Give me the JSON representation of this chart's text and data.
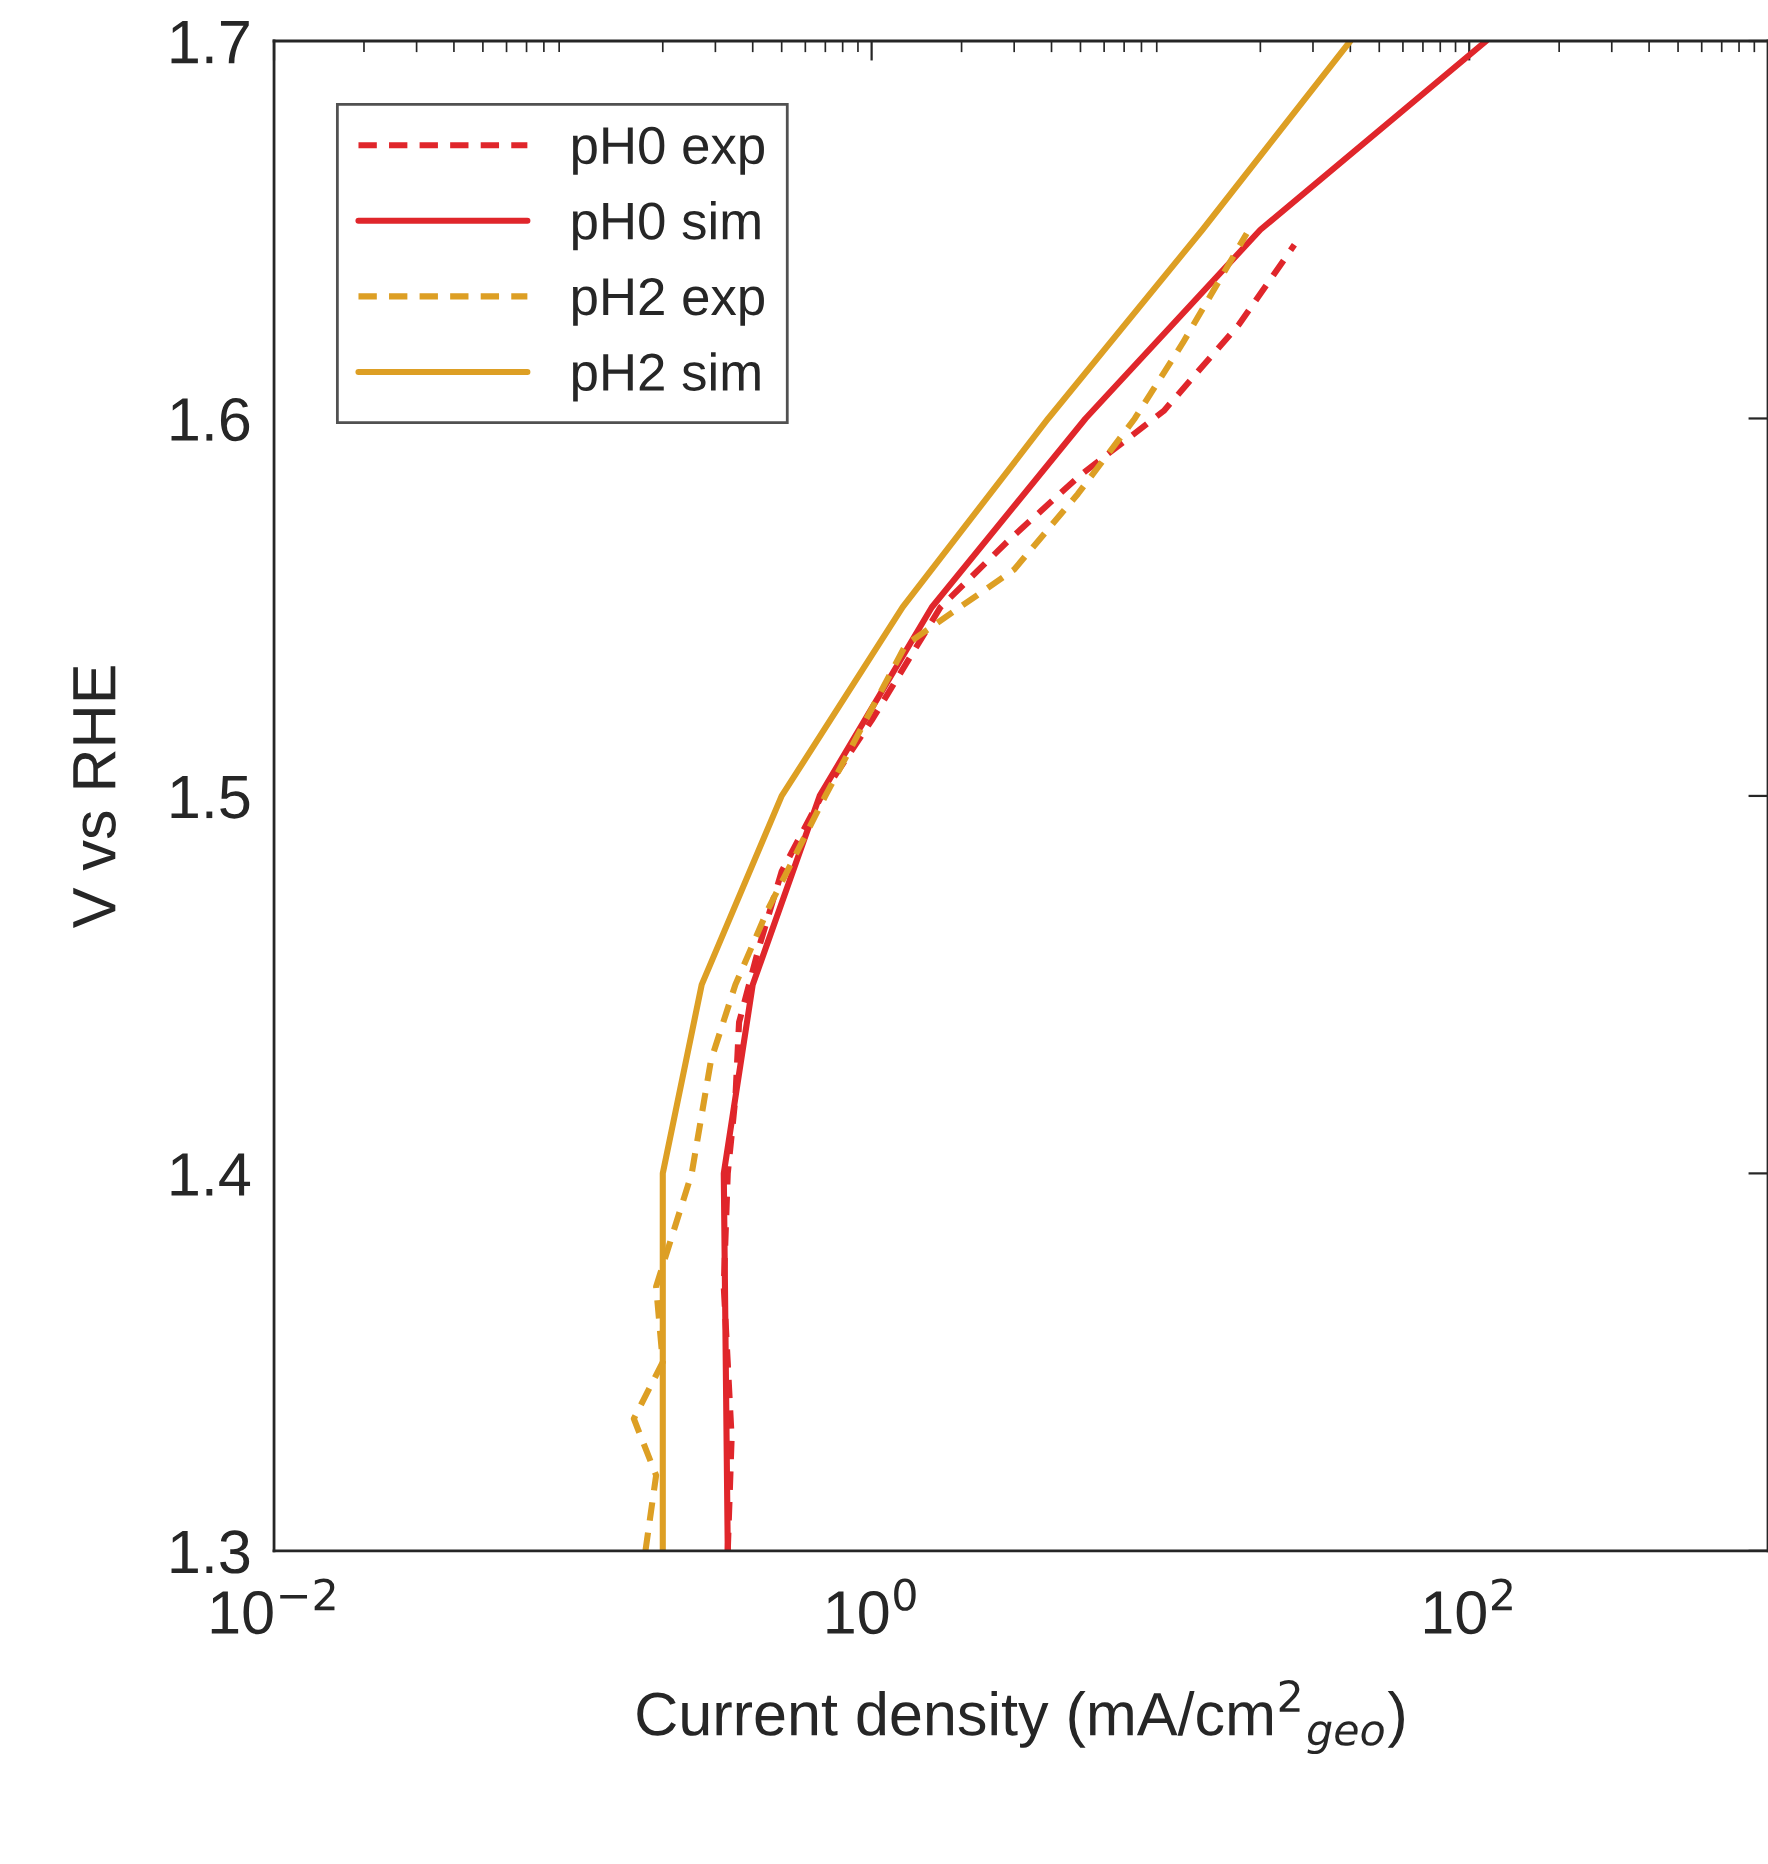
{
  "chart_data": {
    "type": "line",
    "xlabel": "Current density (mA/cm$^{2}$$_{geo}$)",
    "ylabel": "V vs RHE",
    "log": "x",
    "xlim": [
      0.01,
      1000
    ],
    "ylim": [
      1.3,
      1.7
    ],
    "xticks": [
      {
        "value": 0.01,
        "label": "10$^{−2}$"
      },
      {
        "value": 1,
        "label": "10$^{0}$"
      },
      {
        "value": 100,
        "label": "10$^{2}$"
      }
    ],
    "yticks": [
      1.3,
      1.4,
      1.5,
      1.6,
      1.7
    ],
    "grid": false,
    "legend": "top left",
    "series": [
      {
        "name": "pH0 exp",
        "color": "#e0262b",
        "line_style": "dashed",
        "x": [
          0.33,
          0.34,
          0.32,
          0.33,
          0.35,
          0.36,
          0.42,
          0.5,
          0.68,
          1.0,
          1.7,
          2.9,
          5.0,
          9.5,
          17,
          26
        ],
        "values": [
          1.3,
          1.33,
          1.37,
          1.4,
          1.42,
          1.44,
          1.46,
          1.48,
          1.5,
          1.52,
          1.55,
          1.568,
          1.585,
          1.602,
          1.625,
          1.646
        ]
      },
      {
        "name": "pH0 sim",
        "color": "#e0262b",
        "line_style": "solid",
        "x": [
          0.33,
          0.32,
          0.4,
          0.67,
          1.59,
          5.2,
          20,
          114
        ],
        "values": [
          1.3,
          1.4,
          1.45,
          1.5,
          1.55,
          1.6,
          1.65,
          1.7
        ]
      },
      {
        "name": "pH2 exp",
        "color": "#dd9f24",
        "line_style": "dashed",
        "x": [
          0.175,
          0.19,
          0.16,
          0.2,
          0.19,
          0.25,
          0.29,
          0.35,
          0.45,
          0.7,
          1.3,
          3.0,
          4.9,
          7.6,
          11,
          18
        ],
        "values": [
          1.3,
          1.32,
          1.335,
          1.35,
          1.37,
          1.4,
          1.43,
          1.45,
          1.47,
          1.5,
          1.54,
          1.56,
          1.58,
          1.6,
          1.62,
          1.649
        ]
      },
      {
        "name": "pH2 sim",
        "color": "#dd9f24",
        "line_style": "solid",
        "x": [
          0.2,
          0.2,
          0.27,
          0.5,
          1.27,
          3.9,
          12.8,
          40
        ],
        "values": [
          1.3,
          1.4,
          1.45,
          1.5,
          1.55,
          1.6,
          1.65,
          1.7
        ]
      }
    ]
  }
}
